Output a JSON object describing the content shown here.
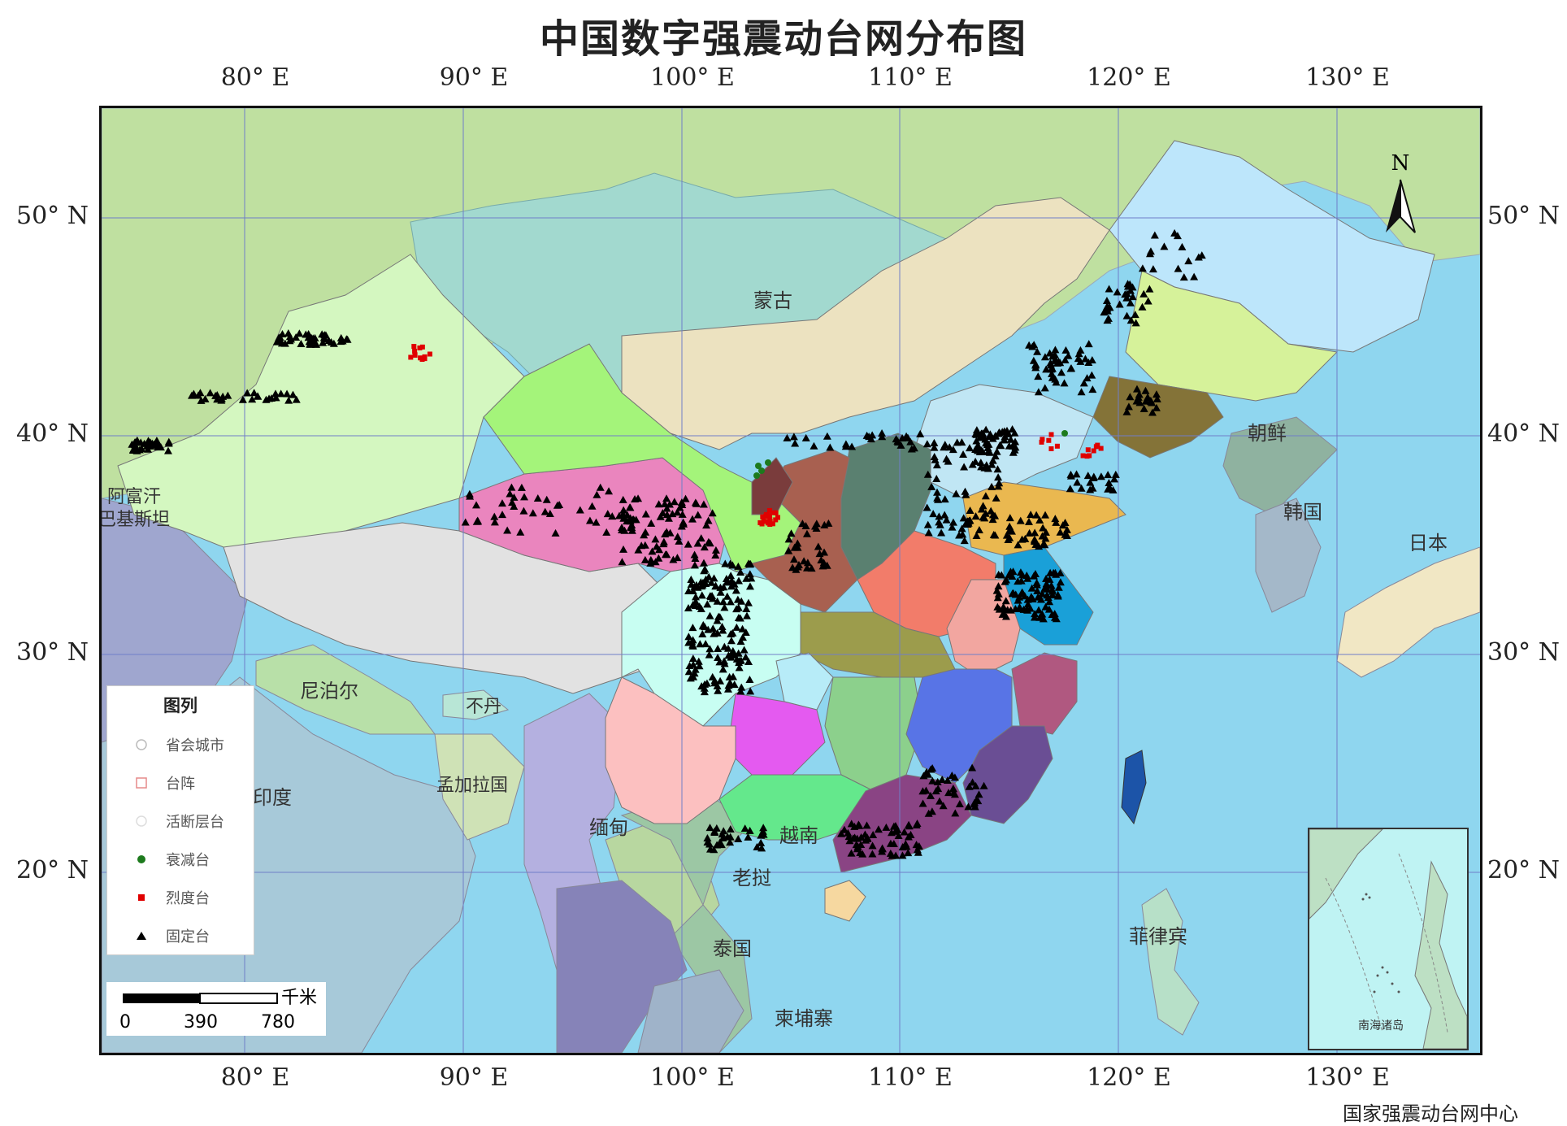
{
  "title": "中国数字强震动台网分布图",
  "credit": "国家强震动台网中心",
  "longitude_labels": [
    "80° E",
    "90° E",
    "100° E",
    "110° E",
    "120° E",
    "130° E"
  ],
  "latitude_labels": [
    "50° N",
    "40° N",
    "30° N",
    "20° N"
  ],
  "north_arrow": "N",
  "region_labels": {
    "mongolia": "蒙古",
    "north_korea": "朝鲜",
    "south_korea": "韩国",
    "japan": "日本",
    "afghanistan_pakistan": "阿富汗\n巴基斯坦",
    "nepal": "尼泊尔",
    "bhutan": "不丹",
    "india": "印度",
    "bangladesh": "孟加拉国",
    "myanmar": "缅甸",
    "vietnam": "越南",
    "laos": "老挝",
    "thailand": "泰国",
    "cambodia": "柬埔寨",
    "philippines": "菲律宾"
  },
  "legend": {
    "title": "图列",
    "items": [
      {
        "label": "省会城市",
        "symbol": "circle-open",
        "color": "#cccccc"
      },
      {
        "label": "台阵",
        "symbol": "square-open",
        "color": "#e58a8a"
      },
      {
        "label": "活断层台",
        "symbol": "circle-open",
        "color": "#dddddd"
      },
      {
        "label": "衰减台",
        "symbol": "circle-filled",
        "color": "#1d7a1d"
      },
      {
        "label": "烈度台",
        "symbol": "square-filled",
        "color": "#e00000"
      },
      {
        "label": "固定台",
        "symbol": "triangle-filled",
        "color": "#000000"
      }
    ]
  },
  "scale_bar": {
    "unit": "千米",
    "ticks": [
      "0",
      "390",
      "780"
    ]
  },
  "inset_label": "南海诸岛",
  "colors": {
    "ocean": "#8fd6ef",
    "foreign_land": "#bfe0a0",
    "xinjiang": "#d4f7c0",
    "tibet": "#e2e2e2",
    "qinghai": "#ea85be",
    "gansu": "#a4f47a",
    "inner_mongolia": "#ece2c0",
    "heilongjiang": "#bde6fb",
    "jilin": "#d6f29a",
    "liaoning": "#847338",
    "sichuan": "#c8fef2",
    "yunnan": "#fcc0c0",
    "guizhou": "#e45af0",
    "guangxi": "#64e88c",
    "guangdong": "#8a4484",
    "fujian": "#6a4e94",
    "jiangxi": "#5874e6",
    "hunan": "#8cd08c",
    "hubei": "#9c9c4c",
    "henan": "#f27c6a",
    "shaanxi": "#a86050",
    "shanxi": "#5a8070",
    "shandong": "#eab850",
    "jiangsu": "#1aa0d8",
    "zhejiang": "#b05880",
    "anhui": "#f2a6a0",
    "taiwan": "#1c54a8",
    "hainan": "#f6d8a0",
    "stations_fixed": "#000000",
    "stations_intensity": "#e00000",
    "stations_attenuation": "#1d7a1d"
  }
}
